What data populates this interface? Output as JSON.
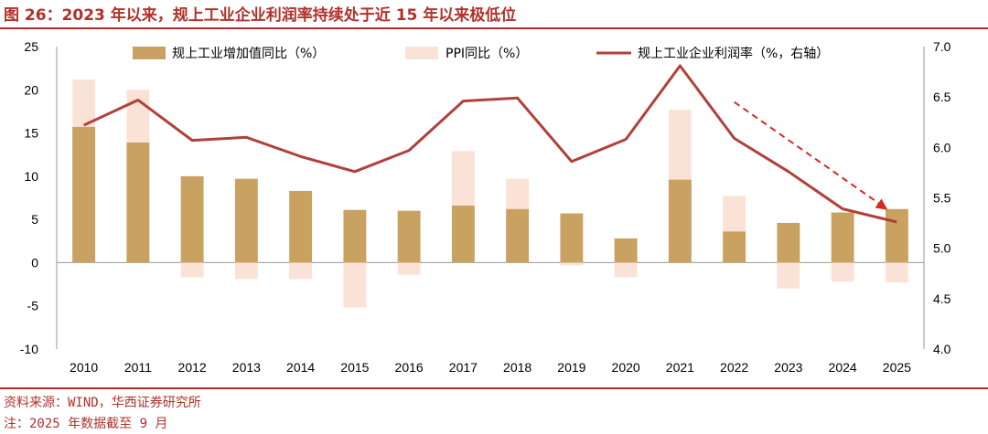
{
  "figure": {
    "title": "图 26：2023 年以来，规上工业企业利润率持续处于近 15 年以来极低位",
    "source": "资料来源：WIND，华西证券研究所",
    "note": "注：2025 年数据截至 9 月"
  },
  "chart_data": {
    "type": "bar",
    "categories": [
      "2010",
      "2011",
      "2012",
      "2013",
      "2014",
      "2015",
      "2016",
      "2017",
      "2018",
      "2019",
      "2020",
      "2021",
      "2022",
      "2023",
      "2024",
      "2025"
    ],
    "series": [
      {
        "name": "规上工业增加值同比（%）",
        "type": "bar",
        "axis": "left",
        "color": "#c9a262",
        "values": [
          15.7,
          13.9,
          10.0,
          9.7,
          8.3,
          6.1,
          6.0,
          6.6,
          6.2,
          5.7,
          2.8,
          9.6,
          3.6,
          4.6,
          5.8,
          6.2
        ]
      },
      {
        "name": "PPI同比（%）",
        "type": "bar",
        "axis": "left",
        "color": "#fbe2d6",
        "values": [
          21.2,
          20.0,
          -1.7,
          -1.9,
          -1.9,
          -5.2,
          -1.4,
          12.9,
          9.7,
          -0.3,
          -1.7,
          17.7,
          7.7,
          -3.0,
          -2.2,
          -2.3
        ]
      },
      {
        "name": "规上工业企业利润率（%，右轴）",
        "type": "line",
        "axis": "right",
        "color": "#b0413a",
        "values": [
          6.22,
          6.47,
          6.07,
          6.1,
          5.91,
          5.76,
          5.97,
          6.46,
          6.49,
          5.86,
          6.08,
          6.81,
          6.09,
          5.76,
          5.39,
          5.26
        ]
      }
    ],
    "left_axis": {
      "min": -10,
      "max": 25,
      "ticks": [
        "-10",
        "-5",
        "0",
        "5",
        "10",
        "15",
        "20",
        "25"
      ]
    },
    "right_axis": {
      "min": 4.0,
      "max": 7.0,
      "ticks": [
        "4.0",
        "4.5",
        "5.0",
        "5.5",
        "6.0",
        "6.5",
        "7.0"
      ]
    },
    "annotation": {
      "type": "dashed-arrow",
      "color": "#d42a22",
      "from": {
        "x": "2022",
        "y_right": 6.45
      },
      "to": {
        "x": "2025",
        "y_right": 5.38
      }
    },
    "legend": "top",
    "grid": false
  }
}
